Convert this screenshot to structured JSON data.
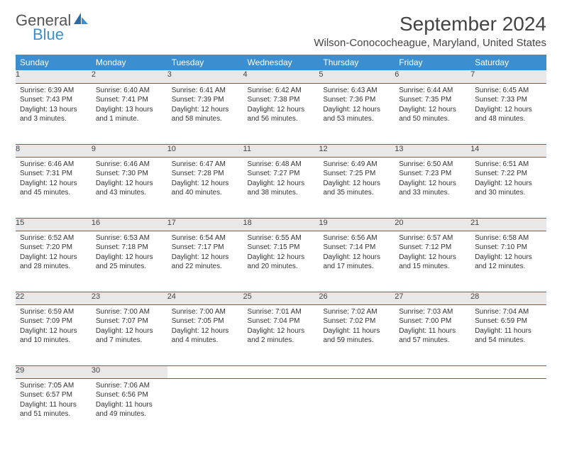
{
  "brand": {
    "part1": "General",
    "part2": "Blue"
  },
  "title": "September 2024",
  "location": "Wilson-Conococheague, Maryland, United States",
  "colors": {
    "header_bg": "#3b8fd0",
    "header_text": "#ffffff",
    "daynum_bg": "#e8e8e8",
    "rule": "#3b6fa0",
    "brand_gray": "#555555",
    "brand_blue": "#3b8fd0"
  },
  "day_headers": [
    "Sunday",
    "Monday",
    "Tuesday",
    "Wednesday",
    "Thursday",
    "Friday",
    "Saturday"
  ],
  "weeks": [
    [
      {
        "n": "1",
        "sr": "6:39 AM",
        "ss": "7:43 PM",
        "dl": "13 hours and 3 minutes."
      },
      {
        "n": "2",
        "sr": "6:40 AM",
        "ss": "7:41 PM",
        "dl": "13 hours and 1 minute."
      },
      {
        "n": "3",
        "sr": "6:41 AM",
        "ss": "7:39 PM",
        "dl": "12 hours and 58 minutes."
      },
      {
        "n": "4",
        "sr": "6:42 AM",
        "ss": "7:38 PM",
        "dl": "12 hours and 56 minutes."
      },
      {
        "n": "5",
        "sr": "6:43 AM",
        "ss": "7:36 PM",
        "dl": "12 hours and 53 minutes."
      },
      {
        "n": "6",
        "sr": "6:44 AM",
        "ss": "7:35 PM",
        "dl": "12 hours and 50 minutes."
      },
      {
        "n": "7",
        "sr": "6:45 AM",
        "ss": "7:33 PM",
        "dl": "12 hours and 48 minutes."
      }
    ],
    [
      {
        "n": "8",
        "sr": "6:46 AM",
        "ss": "7:31 PM",
        "dl": "12 hours and 45 minutes."
      },
      {
        "n": "9",
        "sr": "6:46 AM",
        "ss": "7:30 PM",
        "dl": "12 hours and 43 minutes."
      },
      {
        "n": "10",
        "sr": "6:47 AM",
        "ss": "7:28 PM",
        "dl": "12 hours and 40 minutes."
      },
      {
        "n": "11",
        "sr": "6:48 AM",
        "ss": "7:27 PM",
        "dl": "12 hours and 38 minutes."
      },
      {
        "n": "12",
        "sr": "6:49 AM",
        "ss": "7:25 PM",
        "dl": "12 hours and 35 minutes."
      },
      {
        "n": "13",
        "sr": "6:50 AM",
        "ss": "7:23 PM",
        "dl": "12 hours and 33 minutes."
      },
      {
        "n": "14",
        "sr": "6:51 AM",
        "ss": "7:22 PM",
        "dl": "12 hours and 30 minutes."
      }
    ],
    [
      {
        "n": "15",
        "sr": "6:52 AM",
        "ss": "7:20 PM",
        "dl": "12 hours and 28 minutes."
      },
      {
        "n": "16",
        "sr": "6:53 AM",
        "ss": "7:18 PM",
        "dl": "12 hours and 25 minutes."
      },
      {
        "n": "17",
        "sr": "6:54 AM",
        "ss": "7:17 PM",
        "dl": "12 hours and 22 minutes."
      },
      {
        "n": "18",
        "sr": "6:55 AM",
        "ss": "7:15 PM",
        "dl": "12 hours and 20 minutes."
      },
      {
        "n": "19",
        "sr": "6:56 AM",
        "ss": "7:14 PM",
        "dl": "12 hours and 17 minutes."
      },
      {
        "n": "20",
        "sr": "6:57 AM",
        "ss": "7:12 PM",
        "dl": "12 hours and 15 minutes."
      },
      {
        "n": "21",
        "sr": "6:58 AM",
        "ss": "7:10 PM",
        "dl": "12 hours and 12 minutes."
      }
    ],
    [
      {
        "n": "22",
        "sr": "6:59 AM",
        "ss": "7:09 PM",
        "dl": "12 hours and 10 minutes."
      },
      {
        "n": "23",
        "sr": "7:00 AM",
        "ss": "7:07 PM",
        "dl": "12 hours and 7 minutes."
      },
      {
        "n": "24",
        "sr": "7:00 AM",
        "ss": "7:05 PM",
        "dl": "12 hours and 4 minutes."
      },
      {
        "n": "25",
        "sr": "7:01 AM",
        "ss": "7:04 PM",
        "dl": "12 hours and 2 minutes."
      },
      {
        "n": "26",
        "sr": "7:02 AM",
        "ss": "7:02 PM",
        "dl": "11 hours and 59 minutes."
      },
      {
        "n": "27",
        "sr": "7:03 AM",
        "ss": "7:00 PM",
        "dl": "11 hours and 57 minutes."
      },
      {
        "n": "28",
        "sr": "7:04 AM",
        "ss": "6:59 PM",
        "dl": "11 hours and 54 minutes."
      }
    ],
    [
      {
        "n": "29",
        "sr": "7:05 AM",
        "ss": "6:57 PM",
        "dl": "11 hours and 51 minutes."
      },
      {
        "n": "30",
        "sr": "7:06 AM",
        "ss": "6:56 PM",
        "dl": "11 hours and 49 minutes."
      },
      null,
      null,
      null,
      null,
      null
    ]
  ],
  "labels": {
    "sunrise": "Sunrise:",
    "sunset": "Sunset:",
    "daylight": "Daylight:"
  }
}
